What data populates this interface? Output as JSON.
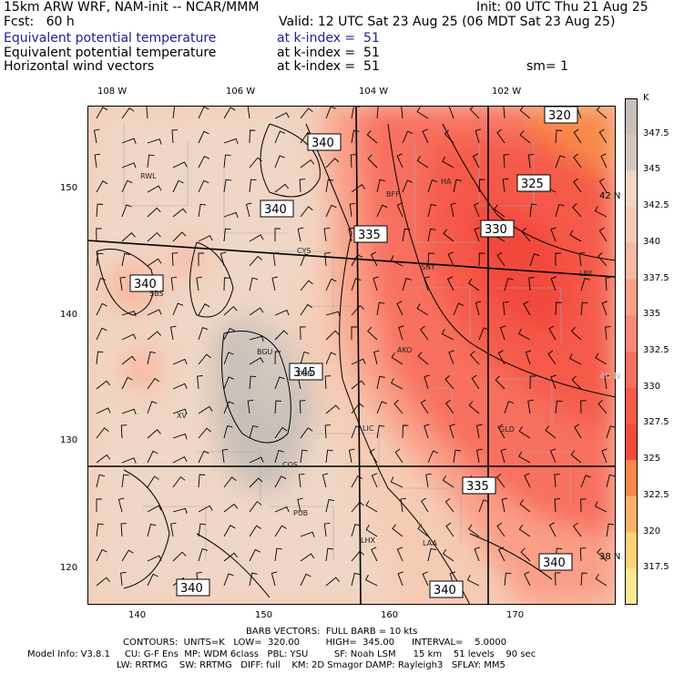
{
  "header": {
    "line1_left": "15km ARW WRF, NAM-init -- NCAR/MMM",
    "line1_right": "Init: 00 UTC Thu 21 Aug 25",
    "line2_left": "Fcst:   60 h",
    "line2_right": "Valid: 12 UTC Sat 23 Aug 25 (06 MDT Sat 23 Aug 25)",
    "fields": [
      {
        "name": "Equivalent potential temperature",
        "level": "at k-index =  51",
        "highlight": true
      },
      {
        "name": "Equivalent potential temperature",
        "level": "at k-index =  51",
        "highlight": false
      },
      {
        "name": "Horizontal wind vectors",
        "level": "at k-index =  51",
        "highlight": false
      }
    ],
    "smoothing": "sm= 1"
  },
  "top_axis": [
    "108 W",
    "106 W",
    "104 W",
    "102 W"
  ],
  "left_axis": [
    "150",
    "140",
    "130",
    "120"
  ],
  "bottom_axis": [
    "140",
    "150",
    "160",
    "170"
  ],
  "right_lat": [
    "42 N",
    "40 N",
    "38 N"
  ],
  "colorbar": {
    "unit": "K",
    "labels": [
      "347.5",
      "345",
      "342.5",
      "340",
      "337.5",
      "335",
      "332.5",
      "330",
      "327.5",
      "325",
      "322.5",
      "320",
      "317.5"
    ],
    "colors": [
      "#c8c0b8",
      "#d2c8bf",
      "#f0d6c4",
      "#f5cbb4",
      "#f8b9a2",
      "#fa9f88",
      "#fa8a74",
      "#f8705e",
      "#f55a4a",
      "#f24a3c",
      "#f8884a",
      "#fbb265",
      "#fdd278",
      "#fee896"
    ]
  },
  "map": {
    "cities": [
      "RWL",
      "BFF",
      "HA",
      "CYS",
      "SNY",
      "SBS",
      "BGU",
      "AKO",
      "DEN",
      "XV",
      "LIC",
      "GLD",
      "COS",
      "PUB",
      "LHX",
      "LAA",
      "LBF"
    ],
    "contour_labels": [
      "320",
      "325",
      "330",
      "335",
      "335",
      "340",
      "340",
      "340",
      "340",
      "340",
      "345",
      "340"
    ]
  },
  "footer": {
    "barb": "BARB VECTORS:  FULL BARB = 10 kts",
    "contours": "CONTOURS:  UNITS=K   LOW=  320.00         HIGH=  345.00      INTERVAL=    5.0000",
    "model1": "Model Info: V3.8.1     CU: G-F Ens  MP: WDM 6class   PBL: YSU         SF: Noah LSM      15 km    51 levels    90 sec",
    "model2": "LW: RRTMG    SW: RRTMG   DIFF: full    KM: 2D Smagor DAMP: Rayleigh3   SFLAY: MM5"
  }
}
